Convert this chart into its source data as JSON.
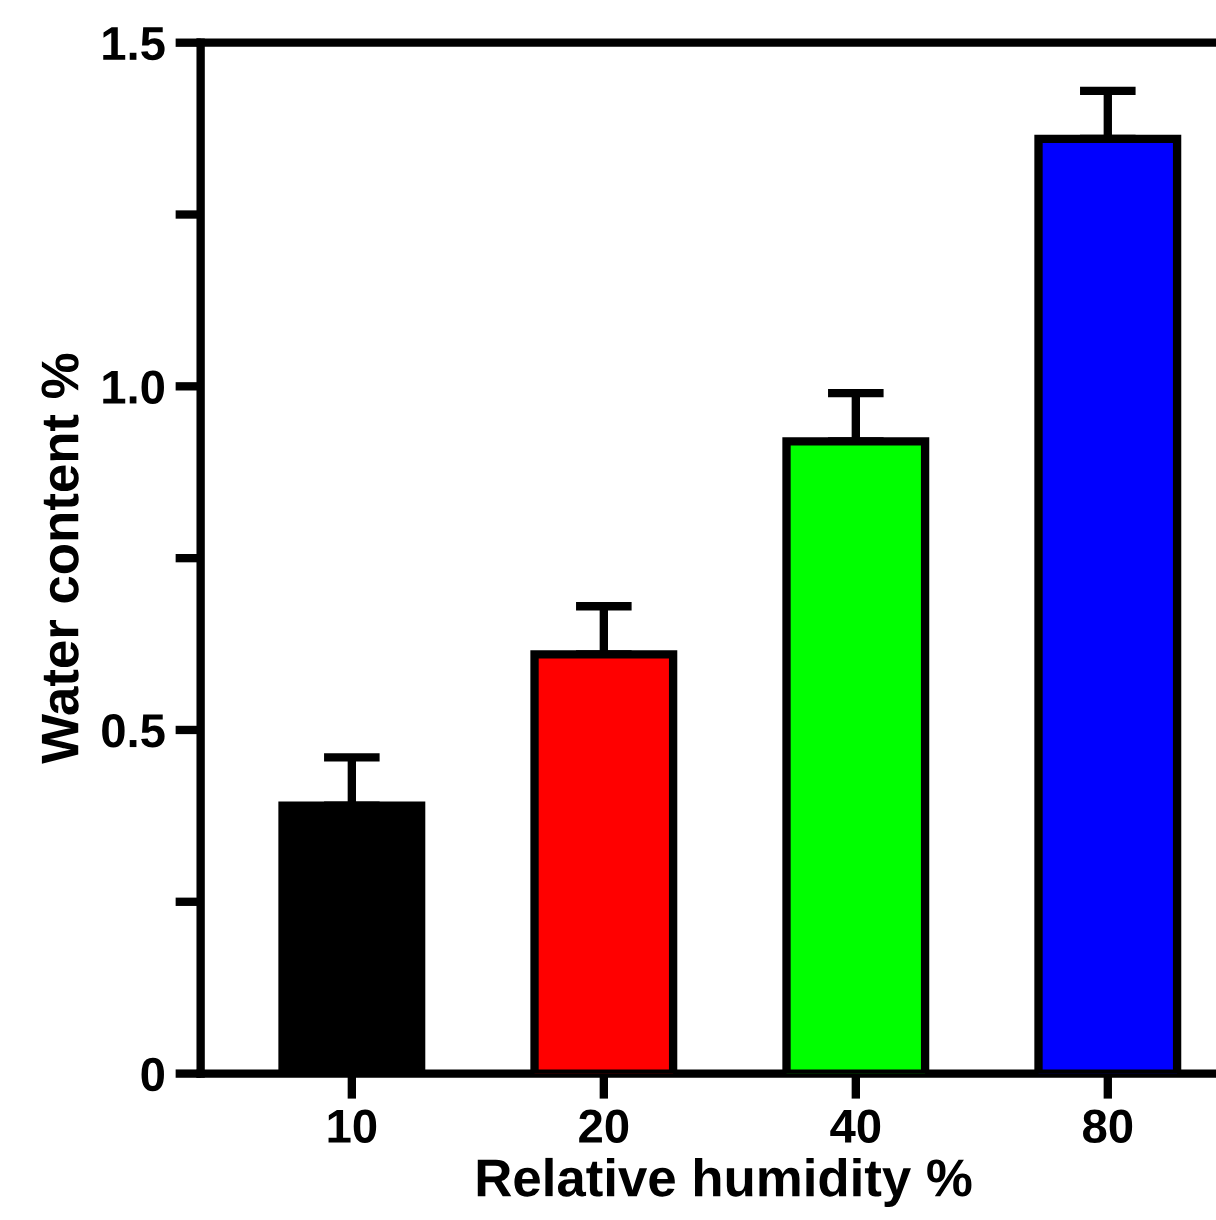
{
  "chart_data": {
    "type": "bar",
    "xlabel": "Relative humidity %",
    "ylabel": "Water content %",
    "categories": [
      "10",
      "20",
      "40",
      "80"
    ],
    "values": [
      0.39,
      0.61,
      0.92,
      1.36
    ],
    "colors": [
      "#000000",
      "#ff0000",
      "#00ff00",
      "#0000ff"
    ],
    "errors": [
      [
        0.39,
        0.46
      ],
      [
        0.61,
        0.68
      ],
      [
        0.92,
        0.99
      ],
      [
        1.36,
        1.43
      ]
    ],
    "ylim": [
      0,
      1.5
    ],
    "yticks": [
      0,
      {
        "value": 0.25,
        "label": null
      },
      0.5,
      {
        "value": 0.75,
        "label": null
      },
      {
        "value": 1,
        "label": "1.0"
      },
      {
        "value": 1.25,
        "label": null
      },
      1.5
    ],
    "grid": false,
    "legend": false
  }
}
